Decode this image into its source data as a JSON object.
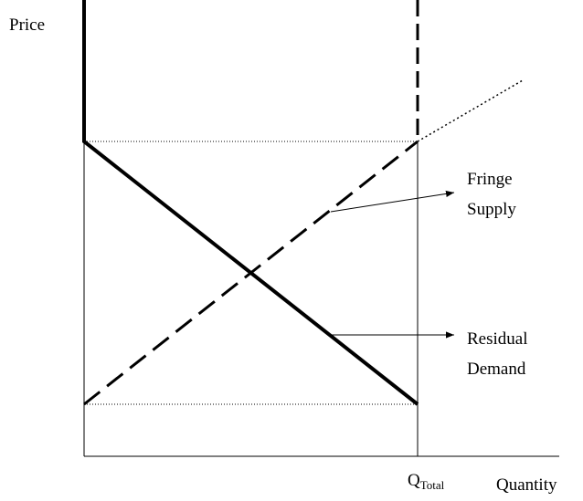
{
  "axes": {
    "y_label": "Price",
    "x_label": "Quantity"
  },
  "q_total": {
    "symbol": "Q",
    "subscript": "Total"
  },
  "labels": [
    {
      "lines": [
        "Fringe",
        "Supply"
      ]
    },
    {
      "lines": [
        "Residual",
        "Demand"
      ]
    }
  ]
}
